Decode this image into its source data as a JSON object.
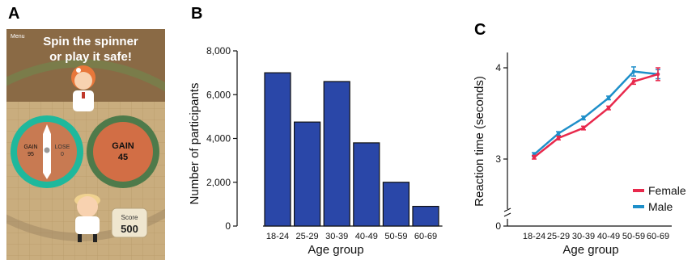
{
  "panels": {
    "a": "A",
    "b": "B",
    "c": "C"
  },
  "game": {
    "menu_label": "Menu",
    "headline_line1": "Spin the spinner",
    "headline_line2": "or play it safe!",
    "spinner_gain_label": "GAIN",
    "spinner_gain_value": "95",
    "spinner_lose_label": "LOSE",
    "spinner_lose_value": "0",
    "safe_gain_label": "GAIN",
    "safe_gain_value": "45",
    "score_label": "Score",
    "score_value": "500"
  },
  "chart_data": [
    {
      "type": "bar",
      "xlabel": "Age group",
      "ylabel": "Number of participants",
      "categories": [
        "18-24",
        "25-29",
        "30-39",
        "40-49",
        "50-59",
        "60-69"
      ],
      "values": [
        7000,
        4750,
        6600,
        3800,
        2000,
        900
      ],
      "ylim": [
        0,
        8000
      ],
      "yticks": [
        "0",
        "2,000",
        "4,000",
        "6,000",
        "8,000"
      ],
      "bar_color": "#2a47a8"
    },
    {
      "type": "line",
      "xlabel": "Age group",
      "ylabel": "Reaction time (seconds)",
      "categories": [
        "18-24",
        "25-29",
        "30-39",
        "40-49",
        "50-59",
        "60-69"
      ],
      "yticks": [
        "0",
        "3",
        "4"
      ],
      "ylim_broken": [
        2.3,
        4.1
      ],
      "legend_position": "bottom-right",
      "series": [
        {
          "name": "Female",
          "color": "#e8294c",
          "values": [
            3.02,
            3.23,
            3.34,
            3.56,
            3.85,
            3.93
          ],
          "err": [
            0.02,
            0.02,
            0.02,
            0.02,
            0.03,
            0.07
          ]
        },
        {
          "name": "Male",
          "color": "#1e8fc9",
          "values": [
            3.05,
            3.28,
            3.45,
            3.67,
            3.96,
            3.93
          ],
          "err": [
            0.02,
            0.02,
            0.02,
            0.02,
            0.05,
            0.05
          ]
        }
      ]
    }
  ]
}
